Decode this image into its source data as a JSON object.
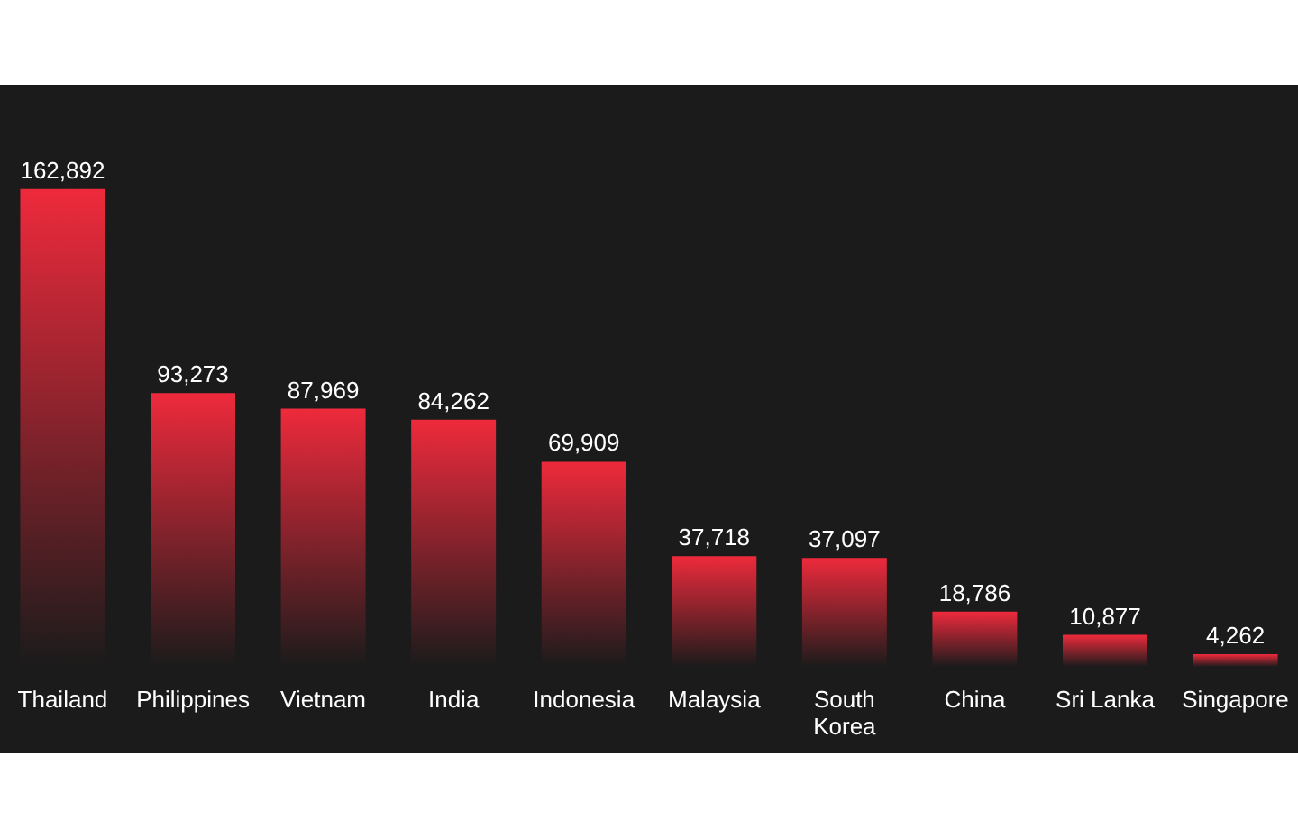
{
  "chart_data": {
    "type": "bar",
    "categories": [
      "Thailand",
      "Philippines",
      "Vietnam",
      "India",
      "Indonesia",
      "Malaysia",
      "South Korea",
      "China",
      "Sri Lanka",
      "Singapore"
    ],
    "values": [
      162892,
      93273,
      87969,
      84262,
      69909,
      37718,
      37097,
      18786,
      10877,
      4262
    ],
    "value_labels": [
      "162,892",
      "93,273",
      "87,969",
      "84,262",
      "69,909",
      "37,718",
      "37,097",
      "18,786",
      "10,877",
      "4,262"
    ],
    "color": "#ee2a3c"
  }
}
